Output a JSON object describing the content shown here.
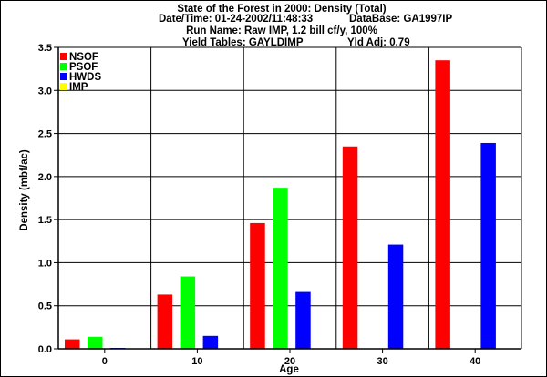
{
  "header": {
    "title": "State of the Forest in 2000: Density (Total)",
    "datetime_label": "Date/Time: 01-24-2002/11:48:33",
    "database_label": "DataBase: GA1997IP",
    "run_label": "Run Name: Raw IMP, 1.2 bill cf/y, 100%",
    "yield_tables_label": "Yield Tables: GAYLDIMP",
    "yld_adj_label": "Yld Adj: 0.79"
  },
  "chart_data": {
    "type": "bar",
    "title": "State of the Forest in 2000: Density (Total)",
    "xlabel": "Age",
    "ylabel": "Density (mbf/ac)",
    "categories": [
      "0",
      "10",
      "20",
      "30",
      "40"
    ],
    "ylim": [
      0,
      3.5
    ],
    "yticks": [
      "0.0",
      "0.5",
      "1.0",
      "1.5",
      "2.0",
      "2.5",
      "3.0",
      "3.5"
    ],
    "grid": true,
    "legend_position": "top-left",
    "series": [
      {
        "name": "NSOF",
        "color": "#ff0000",
        "values": [
          0.11,
          0.63,
          1.46,
          2.35,
          3.35
        ]
      },
      {
        "name": "PSOF",
        "color": "#00ff00",
        "values": [
          0.14,
          0.84,
          1.87,
          0,
          0
        ]
      },
      {
        "name": "HWDS",
        "color": "#0000ff",
        "values": [
          0.01,
          0.15,
          0.66,
          1.21,
          2.39
        ]
      },
      {
        "name": "IMP",
        "color": "#ffff00",
        "values": [
          0,
          0,
          0,
          0,
          0
        ]
      }
    ]
  }
}
